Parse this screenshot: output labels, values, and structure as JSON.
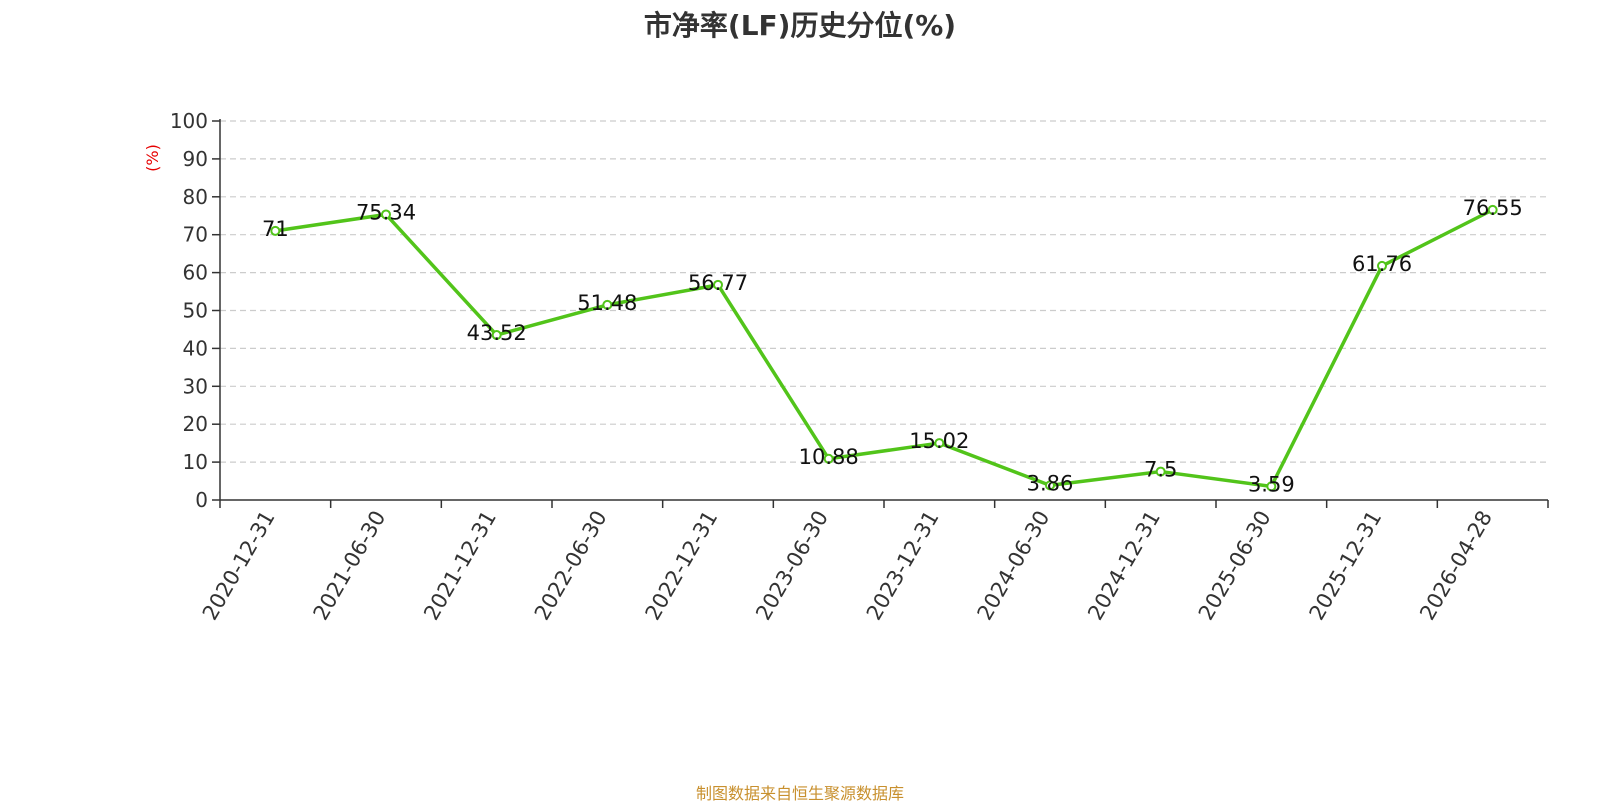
{
  "chart_data": {
    "type": "line",
    "title": "市净率(LF)历史分位(%)",
    "ylabel": "(%)",
    "xlabel": "",
    "ylim": [
      0,
      100
    ],
    "yticks": [
      0,
      10,
      20,
      30,
      40,
      50,
      60,
      70,
      80,
      90,
      100
    ],
    "grid": true,
    "categories": [
      "2020-12-31",
      "2021-06-30",
      "2021-12-31",
      "2022-06-30",
      "2022-12-31",
      "2023-06-30",
      "2023-12-31",
      "2024-06-30",
      "2024-12-31",
      "2025-06-30",
      "2025-12-31",
      "2026-04-28"
    ],
    "series": [
      {
        "values": [
          71,
          75.34,
          43.52,
          51.48,
          56.77,
          10.88,
          15.02,
          3.86,
          7.5,
          3.59,
          61.76,
          76.55
        ],
        "labels": [
          "71",
          "75.34",
          "43.52",
          "51.48",
          "56.77",
          "10.88",
          "15.02",
          "3.86",
          "7.5",
          "3.59",
          "61.76",
          "76.55"
        ]
      }
    ],
    "colors": {
      "line": "#52c41a",
      "ylabel": "#e60000",
      "grid": "#cccccc",
      "axis": "#333333"
    }
  },
  "footer": "制图数据来自恒生聚源数据库"
}
